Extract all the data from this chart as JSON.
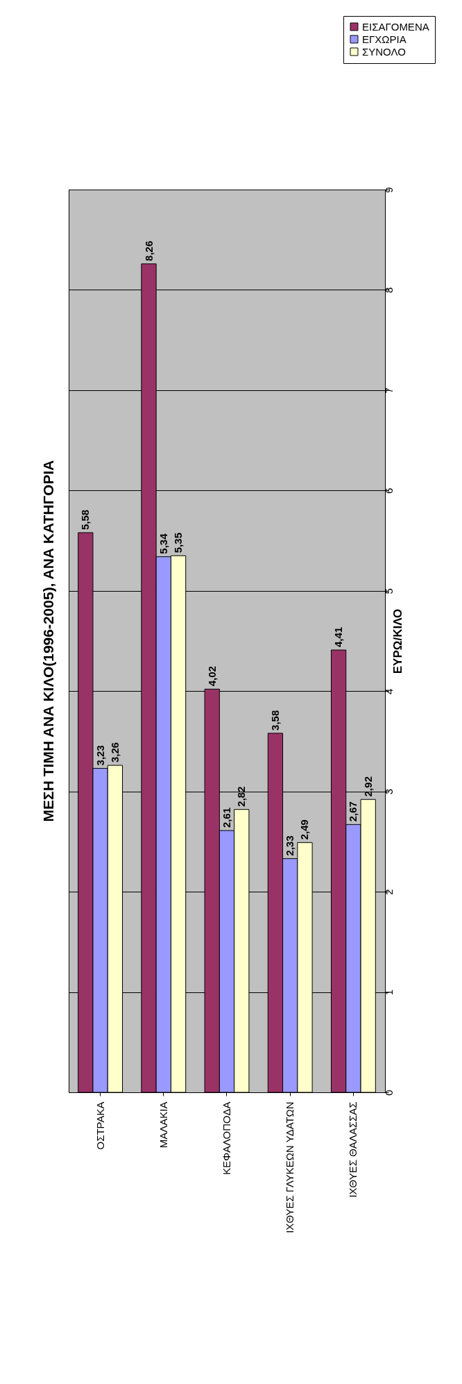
{
  "chart_data": {
    "type": "bar",
    "title": "ΜΕΣΗ ΤΙΜΗ ΑΝΑ ΚΙΛΟ(1996-2005), ΑΝΑ ΚΑΤΗΓΟΡΙΑ",
    "ylabel": "ΕΥΡΩ/ΚΙΛΟ",
    "categories": [
      "ΟΣΤΡΑΚΑ",
      "ΜΑΛΑΚΙΑ",
      "ΚΕΦΑΛΟΠΟΔΑ",
      "ΙΧΘΥΕΣ ΓΛΥΚΕΩΝ ΥΔΑΤΩΝ",
      "ΙΧΘΥΕΣ ΘΑΛΑΣΣΑΣ"
    ],
    "series": [
      {
        "name": "ΕΙΣΑΓΟΜΕΝΑ",
        "color": "#993366",
        "values": [
          5.58,
          8.26,
          4.02,
          3.58,
          4.41
        ],
        "value_labels": [
          "5,58",
          "8,26",
          "4,02",
          "3,58",
          "4,41"
        ]
      },
      {
        "name": "ΕΓΧΩΡΙΑ",
        "color": "#9999ff",
        "values": [
          3.23,
          5.34,
          2.61,
          2.33,
          2.67
        ],
        "value_labels": [
          "3,23",
          "5,34",
          "2,61",
          "2,33",
          "2,67"
        ]
      },
      {
        "name": "ΣΥΝΟΛΟ",
        "color": "#ffffcc",
        "values": [
          3.26,
          5.35,
          2.82,
          2.49,
          2.92
        ],
        "value_labels": [
          "3,26",
          "5,35",
          "2,82",
          "2,49",
          "2,92"
        ]
      }
    ],
    "ylim": [
      0,
      9
    ],
    "yticks": [
      0,
      1,
      2,
      3,
      4,
      5,
      6,
      7,
      8,
      9
    ],
    "grid": "y",
    "legend": "top right"
  }
}
